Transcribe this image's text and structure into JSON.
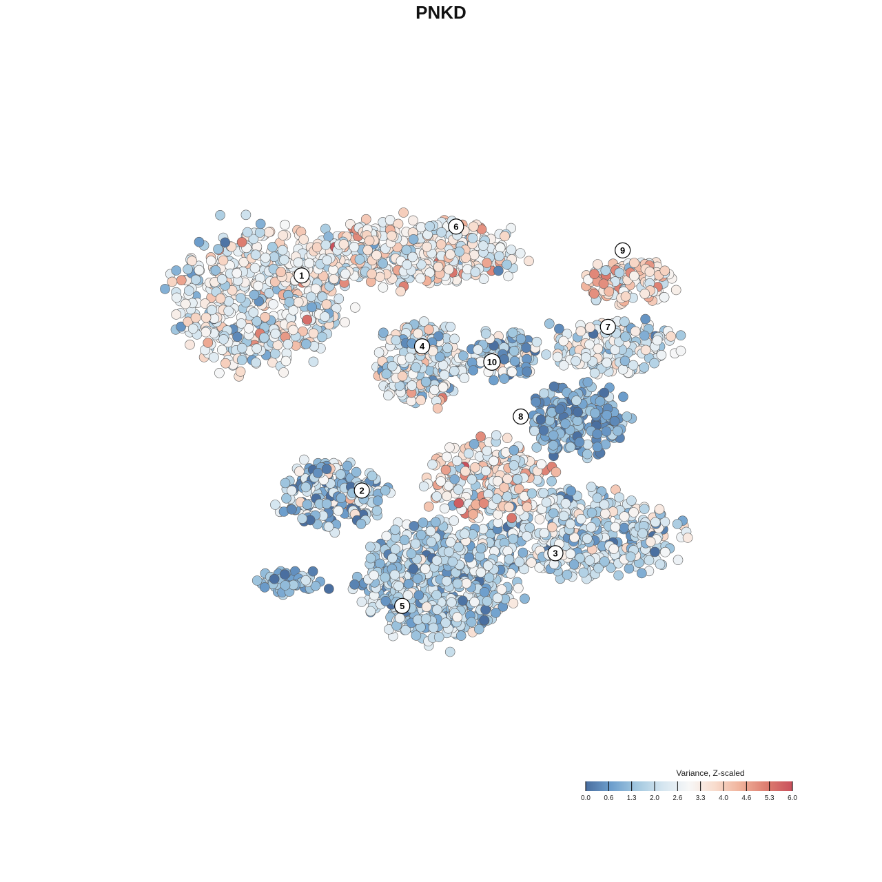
{
  "chart_data": {
    "type": "scatter",
    "title": "PNKD",
    "xlabel": "",
    "ylabel": "",
    "xlim": [
      0,
      100
    ],
    "ylim": [
      0,
      100
    ],
    "grid": false,
    "legend": {
      "title": "Variance, Z-scaled",
      "placement": "bottom-right",
      "ticks": [
        "0.0",
        "0.6",
        "1.3",
        "2.0",
        "2.6",
        "3.3",
        "4.0",
        "4.6",
        "5.3",
        "6.0"
      ],
      "range": [
        0,
        6
      ]
    },
    "color_scale": [
      "#4a6fa0",
      "#6e9fcd",
      "#a4c9e0",
      "#d6e6f0",
      "#f7f7f7",
      "#f8dccd",
      "#f0b19a",
      "#dd7d70",
      "#c9505c"
    ],
    "clusters": [
      {
        "label": "1",
        "x": 19.0,
        "y": 72.5,
        "rx": 12.5,
        "ry": 10.5,
        "n": 520,
        "mean": 2.7,
        "sd": 0.9
      },
      {
        "label": "6",
        "x": 43.0,
        "y": 80.0,
        "rx": 16.0,
        "ry": 5.0,
        "n": 420,
        "mean": 2.9,
        "sd": 0.9
      },
      {
        "label": "9",
        "x": 76.5,
        "y": 75.5,
        "rx": 6.5,
        "ry": 3.5,
        "n": 120,
        "mean": 3.5,
        "sd": 0.9
      },
      {
        "label": "7",
        "x": 74.5,
        "y": 65.0,
        "rx": 9.5,
        "ry": 4.0,
        "n": 170,
        "mean": 2.4,
        "sd": 0.8
      },
      {
        "label": "4",
        "x": 45.0,
        "y": 62.5,
        "rx": 7.0,
        "ry": 6.5,
        "n": 230,
        "mean": 2.4,
        "sd": 0.9
      },
      {
        "label": "10",
        "x": 57.5,
        "y": 63.5,
        "rx": 4.5,
        "ry": 4.0,
        "n": 90,
        "mean": 1.5,
        "sd": 1.0
      },
      {
        "label": "8",
        "x": 69.0,
        "y": 53.5,
        "rx": 7.5,
        "ry": 5.5,
        "n": 200,
        "mean": 0.9,
        "sd": 0.6
      },
      {
        "label": "2",
        "x": 31.0,
        "y": 41.5,
        "rx": 7.5,
        "ry": 5.0,
        "n": 200,
        "mean": 1.6,
        "sd": 1.0
      },
      {
        "label": "3",
        "x": 70.0,
        "y": 35.0,
        "rx": 14.0,
        "ry": 6.5,
        "n": 420,
        "mean": 2.0,
        "sd": 0.9
      },
      {
        "label": "5",
        "x": 47.5,
        "y": 27.5,
        "rx": 11.5,
        "ry": 9.0,
        "n": 560,
        "mean": 1.7,
        "sd": 0.8
      },
      {
        "label": "",
        "x": 55.0,
        "y": 44.0,
        "rx": 9.0,
        "ry": 6.0,
        "n": 240,
        "mean": 3.2,
        "sd": 1.2
      },
      {
        "label": "",
        "x": 24.0,
        "y": 27.5,
        "rx": 5.0,
        "ry": 2.2,
        "n": 50,
        "mean": 1.1,
        "sd": 0.7
      }
    ],
    "label_positions": [
      {
        "label": "1",
        "x": 26.1,
        "y": 76.4
      },
      {
        "label": "6",
        "x": 50.2,
        "y": 84.2
      },
      {
        "label": "9",
        "x": 76.2,
        "y": 80.4
      },
      {
        "label": "7",
        "x": 73.9,
        "y": 68.2
      },
      {
        "label": "4",
        "x": 44.9,
        "y": 65.1
      },
      {
        "label": "10",
        "x": 55.8,
        "y": 62.6
      },
      {
        "label": "8",
        "x": 60.3,
        "y": 53.9
      },
      {
        "label": "2",
        "x": 35.5,
        "y": 42.1
      },
      {
        "label": "3",
        "x": 65.7,
        "y": 32.1
      },
      {
        "label": "5",
        "x": 41.8,
        "y": 23.7
      }
    ]
  }
}
